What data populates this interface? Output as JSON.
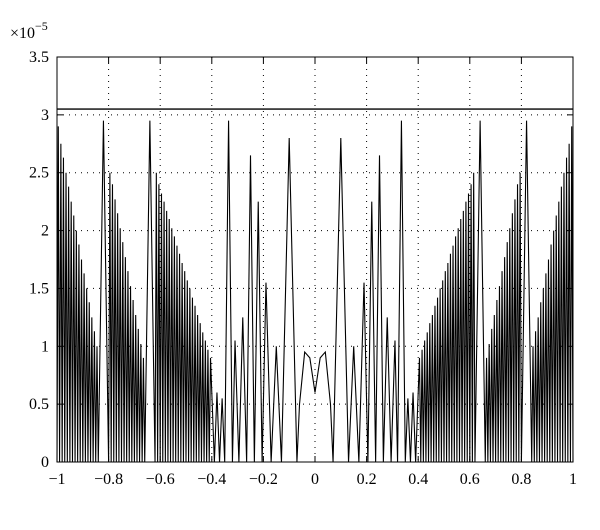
{
  "chart_data": {
    "type": "line",
    "y_multiplier": {
      "base": "×10",
      "exponent": "−5"
    },
    "xlim": [
      -1,
      1
    ],
    "ylim": [
      0,
      3.5
    ],
    "xticks": [
      {
        "value": -1,
        "label": "−1"
      },
      {
        "value": -0.8,
        "label": "−0.8"
      },
      {
        "value": -0.6,
        "label": "−0.6"
      },
      {
        "value": -0.4,
        "label": "−0.4"
      },
      {
        "value": -0.2,
        "label": "−0.2"
      },
      0,
      0.2,
      0.4,
      0.6,
      0.8,
      1
    ],
    "yticks": [
      0,
      0.5,
      1,
      1.5,
      2,
      2.5,
      3,
      3.5
    ],
    "grid": true,
    "hlines": [
      3.05
    ],
    "color": "#000000",
    "x": [
      -1,
      -0.995,
      -0.99,
      -0.985,
      -0.98,
      -0.975,
      -0.97,
      -0.965,
      -0.96,
      -0.955,
      -0.95,
      -0.945,
      -0.94,
      -0.935,
      -0.93,
      -0.925,
      -0.92,
      -0.915,
      -0.91,
      -0.905,
      -0.9,
      -0.895,
      -0.89,
      -0.885,
      -0.88,
      -0.875,
      -0.87,
      -0.865,
      -0.86,
      -0.855,
      -0.85,
      -0.845,
      -0.84,
      -0.82,
      -0.8,
      -0.795,
      -0.79,
      -0.785,
      -0.78,
      -0.775,
      -0.77,
      -0.765,
      -0.76,
      -0.755,
      -0.75,
      -0.745,
      -0.74,
      -0.735,
      -0.73,
      -0.725,
      -0.72,
      -0.715,
      -0.71,
      -0.705,
      -0.7,
      -0.695,
      -0.69,
      -0.685,
      -0.68,
      -0.675,
      -0.67,
      -0.665,
      -0.66,
      -0.64,
      -0.62,
      -0.615,
      -0.61,
      -0.605,
      -0.6,
      -0.595,
      -0.59,
      -0.585,
      -0.58,
      -0.575,
      -0.57,
      -0.565,
      -0.56,
      -0.555,
      -0.55,
      -0.545,
      -0.54,
      -0.535,
      -0.53,
      -0.525,
      -0.52,
      -0.515,
      -0.51,
      -0.505,
      -0.5,
      -0.495,
      -0.49,
      -0.485,
      -0.48,
      -0.475,
      -0.47,
      -0.465,
      -0.46,
      -0.455,
      -0.45,
      -0.445,
      -0.44,
      -0.435,
      -0.43,
      -0.425,
      -0.42,
      -0.415,
      -0.41,
      -0.405,
      -0.39,
      -0.38,
      -0.37,
      -0.36,
      -0.35,
      -0.335,
      -0.32,
      -0.31,
      -0.295,
      -0.28,
      -0.265,
      -0.25,
      -0.235,
      -0.22,
      -0.205,
      -0.19,
      -0.17,
      -0.15,
      -0.13,
      -0.1,
      -0.07,
      -0.06,
      -0.04,
      -0.02,
      0,
      0.02,
      0.04,
      0.06,
      0.07,
      0.1,
      0.13,
      0.15,
      0.17,
      0.19,
      0.205,
      0.22,
      0.235,
      0.25,
      0.265,
      0.28,
      0.295,
      0.31,
      0.32,
      0.335,
      0.35,
      0.36,
      0.37,
      0.38,
      0.39,
      0.405,
      0.41,
      0.415,
      0.42,
      0.425,
      0.43,
      0.435,
      0.44,
      0.445,
      0.45,
      0.455,
      0.46,
      0.465,
      0.47,
      0.475,
      0.48,
      0.485,
      0.49,
      0.495,
      0.5,
      0.505,
      0.51,
      0.515,
      0.52,
      0.525,
      0.53,
      0.535,
      0.54,
      0.545,
      0.55,
      0.555,
      0.56,
      0.565,
      0.57,
      0.575,
      0.58,
      0.585,
      0.59,
      0.595,
      0.6,
      0.605,
      0.61,
      0.615,
      0.62,
      0.64,
      0.66,
      0.665,
      0.67,
      0.675,
      0.68,
      0.685,
      0.69,
      0.695,
      0.7,
      0.705,
      0.71,
      0.715,
      0.72,
      0.725,
      0.73,
      0.735,
      0.74,
      0.745,
      0.75,
      0.755,
      0.76,
      0.765,
      0.77,
      0.775,
      0.78,
      0.785,
      0.79,
      0.795,
      0.8,
      0.82,
      0.84,
      0.845,
      0.85,
      0.855,
      0.86,
      0.865,
      0.87,
      0.875,
      0.88,
      0.885,
      0.89,
      0.895,
      0.9,
      0.905,
      0.91,
      0.915,
      0.92,
      0.925,
      0.93,
      0.935,
      0.94,
      0.945,
      0.95,
      0.955,
      0.96,
      0.965,
      0.97,
      0.975,
      0.98,
      0.985,
      0.99,
      0.995,
      1
    ],
    "values": [
      0,
      2.9,
      0,
      2.75,
      0,
      2.63,
      0,
      2.5,
      0,
      2.38,
      0,
      2.25,
      0,
      2.13,
      0,
      2,
      0,
      1.88,
      0,
      1.75,
      0,
      1.63,
      0,
      1.5,
      0,
      1.38,
      0,
      1.25,
      0,
      1.13,
      0,
      1,
      0,
      2.95,
      0,
      2.5,
      0,
      2.4,
      0,
      2.27,
      0,
      2.15,
      0,
      2.02,
      0,
      1.9,
      0,
      1.77,
      0,
      1.65,
      0,
      1.52,
      0,
      1.4,
      0,
      1.27,
      0,
      1.15,
      0,
      1.02,
      0,
      0.9,
      0,
      2.95,
      0,
      2.5,
      0,
      2.4,
      0,
      2.32,
      0,
      2.25,
      0,
      2.17,
      0,
      2.1,
      0,
      2.02,
      0,
      1.95,
      0,
      1.87,
      0,
      1.8,
      0,
      1.72,
      0,
      1.65,
      0,
      1.57,
      0,
      1.5,
      0,
      1.42,
      0,
      1.35,
      0,
      1.27,
      0,
      1.2,
      0,
      1.12,
      0,
      1.05,
      0,
      0.97,
      0,
      0.9,
      0,
      0.6,
      0,
      0.55,
      0,
      2.95,
      0,
      1.05,
      0,
      1.25,
      0,
      2.65,
      0,
      2.25,
      0,
      1.55,
      0,
      1,
      0,
      2.8,
      0,
      0.5,
      0.95,
      0.9,
      0.6,
      0.9,
      0.95,
      0.5,
      0,
      2.8,
      0,
      1,
      0,
      1.55,
      0,
      2.25,
      0,
      2.65,
      0,
      1.25,
      0,
      1.05,
      0,
      2.95,
      0,
      0.55,
      0,
      0.6,
      0,
      0.9,
      0,
      0.97,
      0,
      1.05,
      0,
      1.12,
      0,
      1.2,
      0,
      1.27,
      0,
      1.35,
      0,
      1.42,
      0,
      1.5,
      0,
      1.57,
      0,
      1.65,
      0,
      1.72,
      0,
      1.8,
      0,
      1.87,
      0,
      1.95,
      0,
      2.02,
      0,
      2.1,
      0,
      2.17,
      0,
      2.25,
      0,
      2.32,
      0,
      2.4,
      0,
      2.5,
      0,
      2.95,
      0,
      0.9,
      0,
      1.02,
      0,
      1.15,
      0,
      1.27,
      0,
      1.4,
      0,
      1.52,
      0,
      1.65,
      0,
      1.77,
      0,
      1.9,
      0,
      2.02,
      0,
      2.15,
      0,
      2.27,
      0,
      2.4,
      0,
      2.5,
      0,
      2.95,
      0,
      1,
      0,
      1.13,
      0,
      1.25,
      0,
      1.38,
      0,
      1.5,
      0,
      1.63,
      0,
      1.75,
      0,
      1.88,
      0,
      2,
      0,
      2.13,
      0,
      2.25,
      0,
      2.38,
      0,
      2.5,
      0,
      2.63,
      0,
      2.75,
      0,
      2.9,
      0
    ]
  }
}
